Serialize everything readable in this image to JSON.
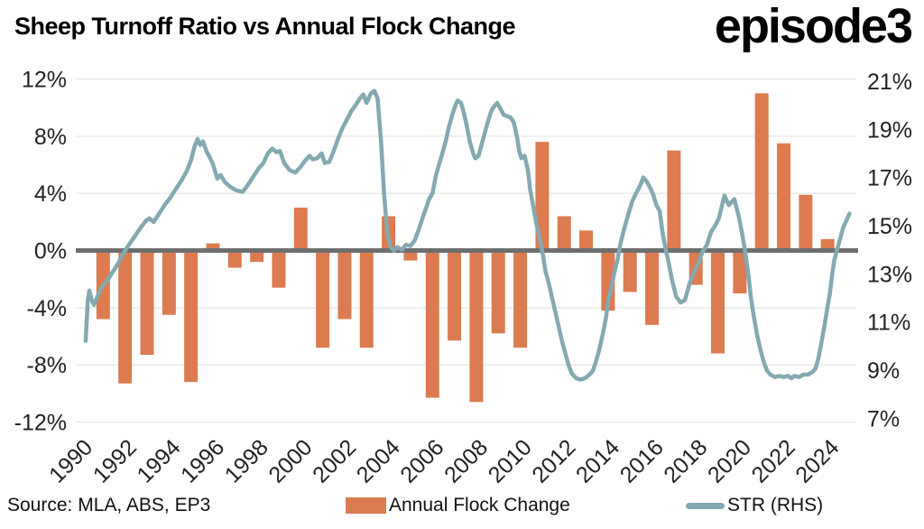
{
  "header": {
    "title": "Sheep Turnoff Ratio vs Annual Flock Change",
    "logo": "episode3"
  },
  "footer": {
    "source": "Source: MLA, ABS, EP3",
    "legend_bar_label": "Annual Flock Change",
    "legend_line_label": "STR (RHS)"
  },
  "colors": {
    "bar": "#DC7B50",
    "line": "#84A9B0",
    "zero_line": "#6E6E6E",
    "gridline": "#EAEAEA",
    "axis_text": "#222222"
  },
  "chart_data": {
    "type": "bar+line combo",
    "title": "Sheep Turnoff Ratio vs Annual Flock Change",
    "grid": true,
    "left_axis": {
      "ticks": [
        "12%",
        "8%",
        "4%",
        "0%",
        "-4%",
        "-8%",
        "-12%"
      ],
      "tick_values": [
        12,
        8,
        4,
        0,
        -4,
        -8,
        -12
      ],
      "range": [
        -12,
        12
      ]
    },
    "right_axis": {
      "ticks": [
        "21%",
        "19%",
        "17%",
        "15%",
        "13%",
        "11%",
        "9%",
        "7%"
      ],
      "tick_values": [
        21,
        19,
        17,
        15,
        13,
        11,
        9,
        7
      ],
      "range": [
        7,
        21
      ]
    },
    "x_axis": {
      "tick_years": [
        1990,
        1992,
        1994,
        1996,
        1998,
        2000,
        2002,
        2004,
        2006,
        2008,
        2010,
        2012,
        2014,
        2016,
        2018,
        2020,
        2022,
        2024
      ]
    },
    "series": [
      {
        "name": "Annual Flock Change",
        "type": "bar",
        "axis": "left",
        "color": "#DC7B50",
        "years": [
          1991,
          1992,
          1993,
          1994,
          1995,
          1996,
          1997,
          1998,
          1999,
          2000,
          2001,
          2002,
          2003,
          2004,
          2005,
          2006,
          2007,
          2008,
          2009,
          2010,
          2011,
          2012,
          2013,
          2014,
          2015,
          2016,
          2017,
          2018,
          2019,
          2020,
          2021,
          2022,
          2023,
          2024
        ],
        "values": [
          -4.8,
          -9.3,
          -7.3,
          -4.5,
          -9.2,
          0.5,
          -1.2,
          -0.8,
          -2.6,
          3.0,
          -6.8,
          -4.8,
          -6.8,
          2.4,
          -0.7,
          -10.3,
          -6.3,
          -10.6,
          -5.8,
          -6.8,
          7.6,
          2.4,
          1.4,
          -4.2,
          -2.9,
          -5.2,
          7.0,
          -2.4,
          -7.2,
          -3.0,
          11.0,
          7.5,
          3.9,
          0.8
        ]
      },
      {
        "name": "STR (RHS)",
        "type": "line",
        "axis": "right",
        "color": "#84A9B0",
        "points": [
          [
            1990.2,
            10.2
          ],
          [
            1990.3,
            11.9
          ],
          [
            1990.37,
            12.3
          ],
          [
            1990.48,
            11.9
          ],
          [
            1990.58,
            11.7
          ],
          [
            1990.72,
            12.0
          ],
          [
            1990.9,
            12.4
          ],
          [
            1991.1,
            12.6
          ],
          [
            1991.35,
            12.95
          ],
          [
            1991.6,
            13.3
          ],
          [
            1991.9,
            13.8
          ],
          [
            1992.1,
            14.1
          ],
          [
            1992.4,
            14.5
          ],
          [
            1992.7,
            14.9
          ],
          [
            1992.95,
            15.2
          ],
          [
            1993.1,
            15.3
          ],
          [
            1993.3,
            15.15
          ],
          [
            1993.55,
            15.5
          ],
          [
            1993.8,
            15.85
          ],
          [
            1994.05,
            16.15
          ],
          [
            1994.3,
            16.5
          ],
          [
            1994.55,
            16.85
          ],
          [
            1994.8,
            17.25
          ],
          [
            1995.0,
            17.7
          ],
          [
            1995.15,
            18.25
          ],
          [
            1995.3,
            18.6
          ],
          [
            1995.42,
            18.35
          ],
          [
            1995.55,
            18.5
          ],
          [
            1995.7,
            18.1
          ],
          [
            1995.85,
            17.85
          ],
          [
            1996.0,
            17.55
          ],
          [
            1996.2,
            16.95
          ],
          [
            1996.35,
            17.1
          ],
          [
            1996.55,
            16.8
          ],
          [
            1996.8,
            16.6
          ],
          [
            1997.1,
            16.45
          ],
          [
            1997.35,
            16.4
          ],
          [
            1997.6,
            16.7
          ],
          [
            1997.85,
            17.05
          ],
          [
            1998.1,
            17.4
          ],
          [
            1998.3,
            17.6
          ],
          [
            1998.5,
            18.0
          ],
          [
            1998.7,
            18.2
          ],
          [
            1998.9,
            18.05
          ],
          [
            1999.05,
            18.1
          ],
          [
            1999.25,
            17.6
          ],
          [
            1999.5,
            17.3
          ],
          [
            1999.75,
            17.2
          ],
          [
            2000.0,
            17.45
          ],
          [
            2000.2,
            17.7
          ],
          [
            2000.4,
            17.9
          ],
          [
            2000.55,
            17.75
          ],
          [
            2000.75,
            17.8
          ],
          [
            2000.95,
            18.0
          ],
          [
            2001.1,
            17.6
          ],
          [
            2001.3,
            17.65
          ],
          [
            2001.5,
            18.1
          ],
          [
            2001.7,
            18.6
          ],
          [
            2001.9,
            19.05
          ],
          [
            2002.1,
            19.4
          ],
          [
            2002.3,
            19.75
          ],
          [
            2002.5,
            20.0
          ],
          [
            2002.7,
            20.3
          ],
          [
            2002.85,
            20.45
          ],
          [
            2003.0,
            20.1
          ],
          [
            2003.2,
            20.5
          ],
          [
            2003.35,
            20.6
          ],
          [
            2003.5,
            20.3
          ],
          [
            2003.65,
            18.6
          ],
          [
            2003.8,
            16.3
          ],
          [
            2003.95,
            14.6
          ],
          [
            2004.1,
            14.1
          ],
          [
            2004.25,
            13.95
          ],
          [
            2004.4,
            14.1
          ],
          [
            2004.6,
            14.0
          ],
          [
            2004.8,
            14.2
          ],
          [
            2005.0,
            14.15
          ],
          [
            2005.2,
            14.4
          ],
          [
            2005.4,
            14.9
          ],
          [
            2005.6,
            15.45
          ],
          [
            2005.85,
            16.1
          ],
          [
            2006.0,
            16.35
          ],
          [
            2006.15,
            17.05
          ],
          [
            2006.3,
            17.55
          ],
          [
            2006.45,
            18.0
          ],
          [
            2006.6,
            18.5
          ],
          [
            2006.75,
            19.1
          ],
          [
            2006.9,
            19.6
          ],
          [
            2007.05,
            20.0
          ],
          [
            2007.15,
            20.2
          ],
          [
            2007.3,
            20.1
          ],
          [
            2007.4,
            19.8
          ],
          [
            2007.55,
            19.2
          ],
          [
            2007.7,
            18.5
          ],
          [
            2007.85,
            18.0
          ],
          [
            2007.95,
            17.8
          ],
          [
            2008.1,
            17.9
          ],
          [
            2008.25,
            18.4
          ],
          [
            2008.4,
            18.9
          ],
          [
            2008.55,
            19.4
          ],
          [
            2008.7,
            19.8
          ],
          [
            2008.85,
            20.0
          ],
          [
            2008.95,
            20.1
          ],
          [
            2009.1,
            19.85
          ],
          [
            2009.25,
            19.6
          ],
          [
            2009.4,
            19.55
          ],
          [
            2009.55,
            19.5
          ],
          [
            2009.7,
            19.3
          ],
          [
            2009.85,
            18.7
          ],
          [
            2009.95,
            18.1
          ],
          [
            2010.05,
            17.8
          ],
          [
            2010.2,
            17.9
          ],
          [
            2010.35,
            17.3
          ],
          [
            2010.45,
            16.5
          ],
          [
            2010.6,
            15.75
          ],
          [
            2010.75,
            15.0
          ],
          [
            2010.9,
            14.4
          ],
          [
            2011.05,
            13.7
          ],
          [
            2011.15,
            13.1
          ],
          [
            2011.3,
            12.6
          ],
          [
            2011.45,
            12.0
          ],
          [
            2011.6,
            11.4
          ],
          [
            2011.75,
            10.8
          ],
          [
            2011.9,
            10.2
          ],
          [
            2012.05,
            9.7
          ],
          [
            2012.2,
            9.2
          ],
          [
            2012.35,
            8.85
          ],
          [
            2012.55,
            8.65
          ],
          [
            2012.75,
            8.6
          ],
          [
            2012.95,
            8.65
          ],
          [
            2013.15,
            8.8
          ],
          [
            2013.3,
            8.95
          ],
          [
            2013.45,
            9.35
          ],
          [
            2013.6,
            9.85
          ],
          [
            2013.75,
            10.45
          ],
          [
            2013.9,
            11.15
          ],
          [
            2014.0,
            11.85
          ],
          [
            2014.15,
            12.45
          ],
          [
            2014.3,
            13.1
          ],
          [
            2014.45,
            13.65
          ],
          [
            2014.55,
            14.2
          ],
          [
            2014.7,
            14.75
          ],
          [
            2014.85,
            15.25
          ],
          [
            2015.0,
            15.7
          ],
          [
            2015.1,
            16.0
          ],
          [
            2015.25,
            16.3
          ],
          [
            2015.4,
            16.55
          ],
          [
            2015.5,
            16.75
          ],
          [
            2015.6,
            17.0
          ],
          [
            2015.75,
            16.85
          ],
          [
            2015.9,
            16.6
          ],
          [
            2016.05,
            16.3
          ],
          [
            2016.2,
            15.85
          ],
          [
            2016.35,
            15.6
          ],
          [
            2016.5,
            14.6
          ],
          [
            2016.65,
            13.9
          ],
          [
            2016.75,
            13.5
          ],
          [
            2016.9,
            12.8
          ],
          [
            2017.1,
            12.05
          ],
          [
            2017.3,
            11.8
          ],
          [
            2017.5,
            11.9
          ],
          [
            2017.7,
            12.55
          ],
          [
            2017.9,
            13.05
          ],
          [
            2018.1,
            13.4
          ],
          [
            2018.3,
            13.9
          ],
          [
            2018.5,
            14.2
          ],
          [
            2018.7,
            14.75
          ],
          [
            2018.85,
            14.95
          ],
          [
            2019.05,
            15.3
          ],
          [
            2019.3,
            16.25
          ],
          [
            2019.5,
            15.85
          ],
          [
            2019.75,
            16.1
          ],
          [
            2019.95,
            15.4
          ],
          [
            2020.1,
            14.7
          ],
          [
            2020.25,
            13.9
          ],
          [
            2020.4,
            12.9
          ],
          [
            2020.5,
            12.05
          ],
          [
            2020.65,
            11.15
          ],
          [
            2020.8,
            10.4
          ],
          [
            2020.95,
            9.8
          ],
          [
            2021.1,
            9.3
          ],
          [
            2021.25,
            8.95
          ],
          [
            2021.4,
            8.8
          ],
          [
            2021.6,
            8.7
          ],
          [
            2021.8,
            8.75
          ],
          [
            2022.0,
            8.7
          ],
          [
            2022.2,
            8.75
          ],
          [
            2022.35,
            8.65
          ],
          [
            2022.5,
            8.75
          ],
          [
            2022.7,
            8.7
          ],
          [
            2022.9,
            8.8
          ],
          [
            2023.1,
            8.8
          ],
          [
            2023.3,
            8.9
          ],
          [
            2023.45,
            9.05
          ],
          [
            2023.6,
            9.55
          ],
          [
            2023.75,
            10.3
          ],
          [
            2023.85,
            10.8
          ],
          [
            2024.0,
            11.65
          ],
          [
            2024.1,
            12.15
          ],
          [
            2024.2,
            12.9
          ],
          [
            2024.3,
            13.55
          ],
          [
            2024.45,
            14.05
          ],
          [
            2024.6,
            14.55
          ],
          [
            2024.7,
            14.9
          ],
          [
            2024.85,
            15.2
          ],
          [
            2025.0,
            15.5
          ]
        ]
      }
    ]
  }
}
